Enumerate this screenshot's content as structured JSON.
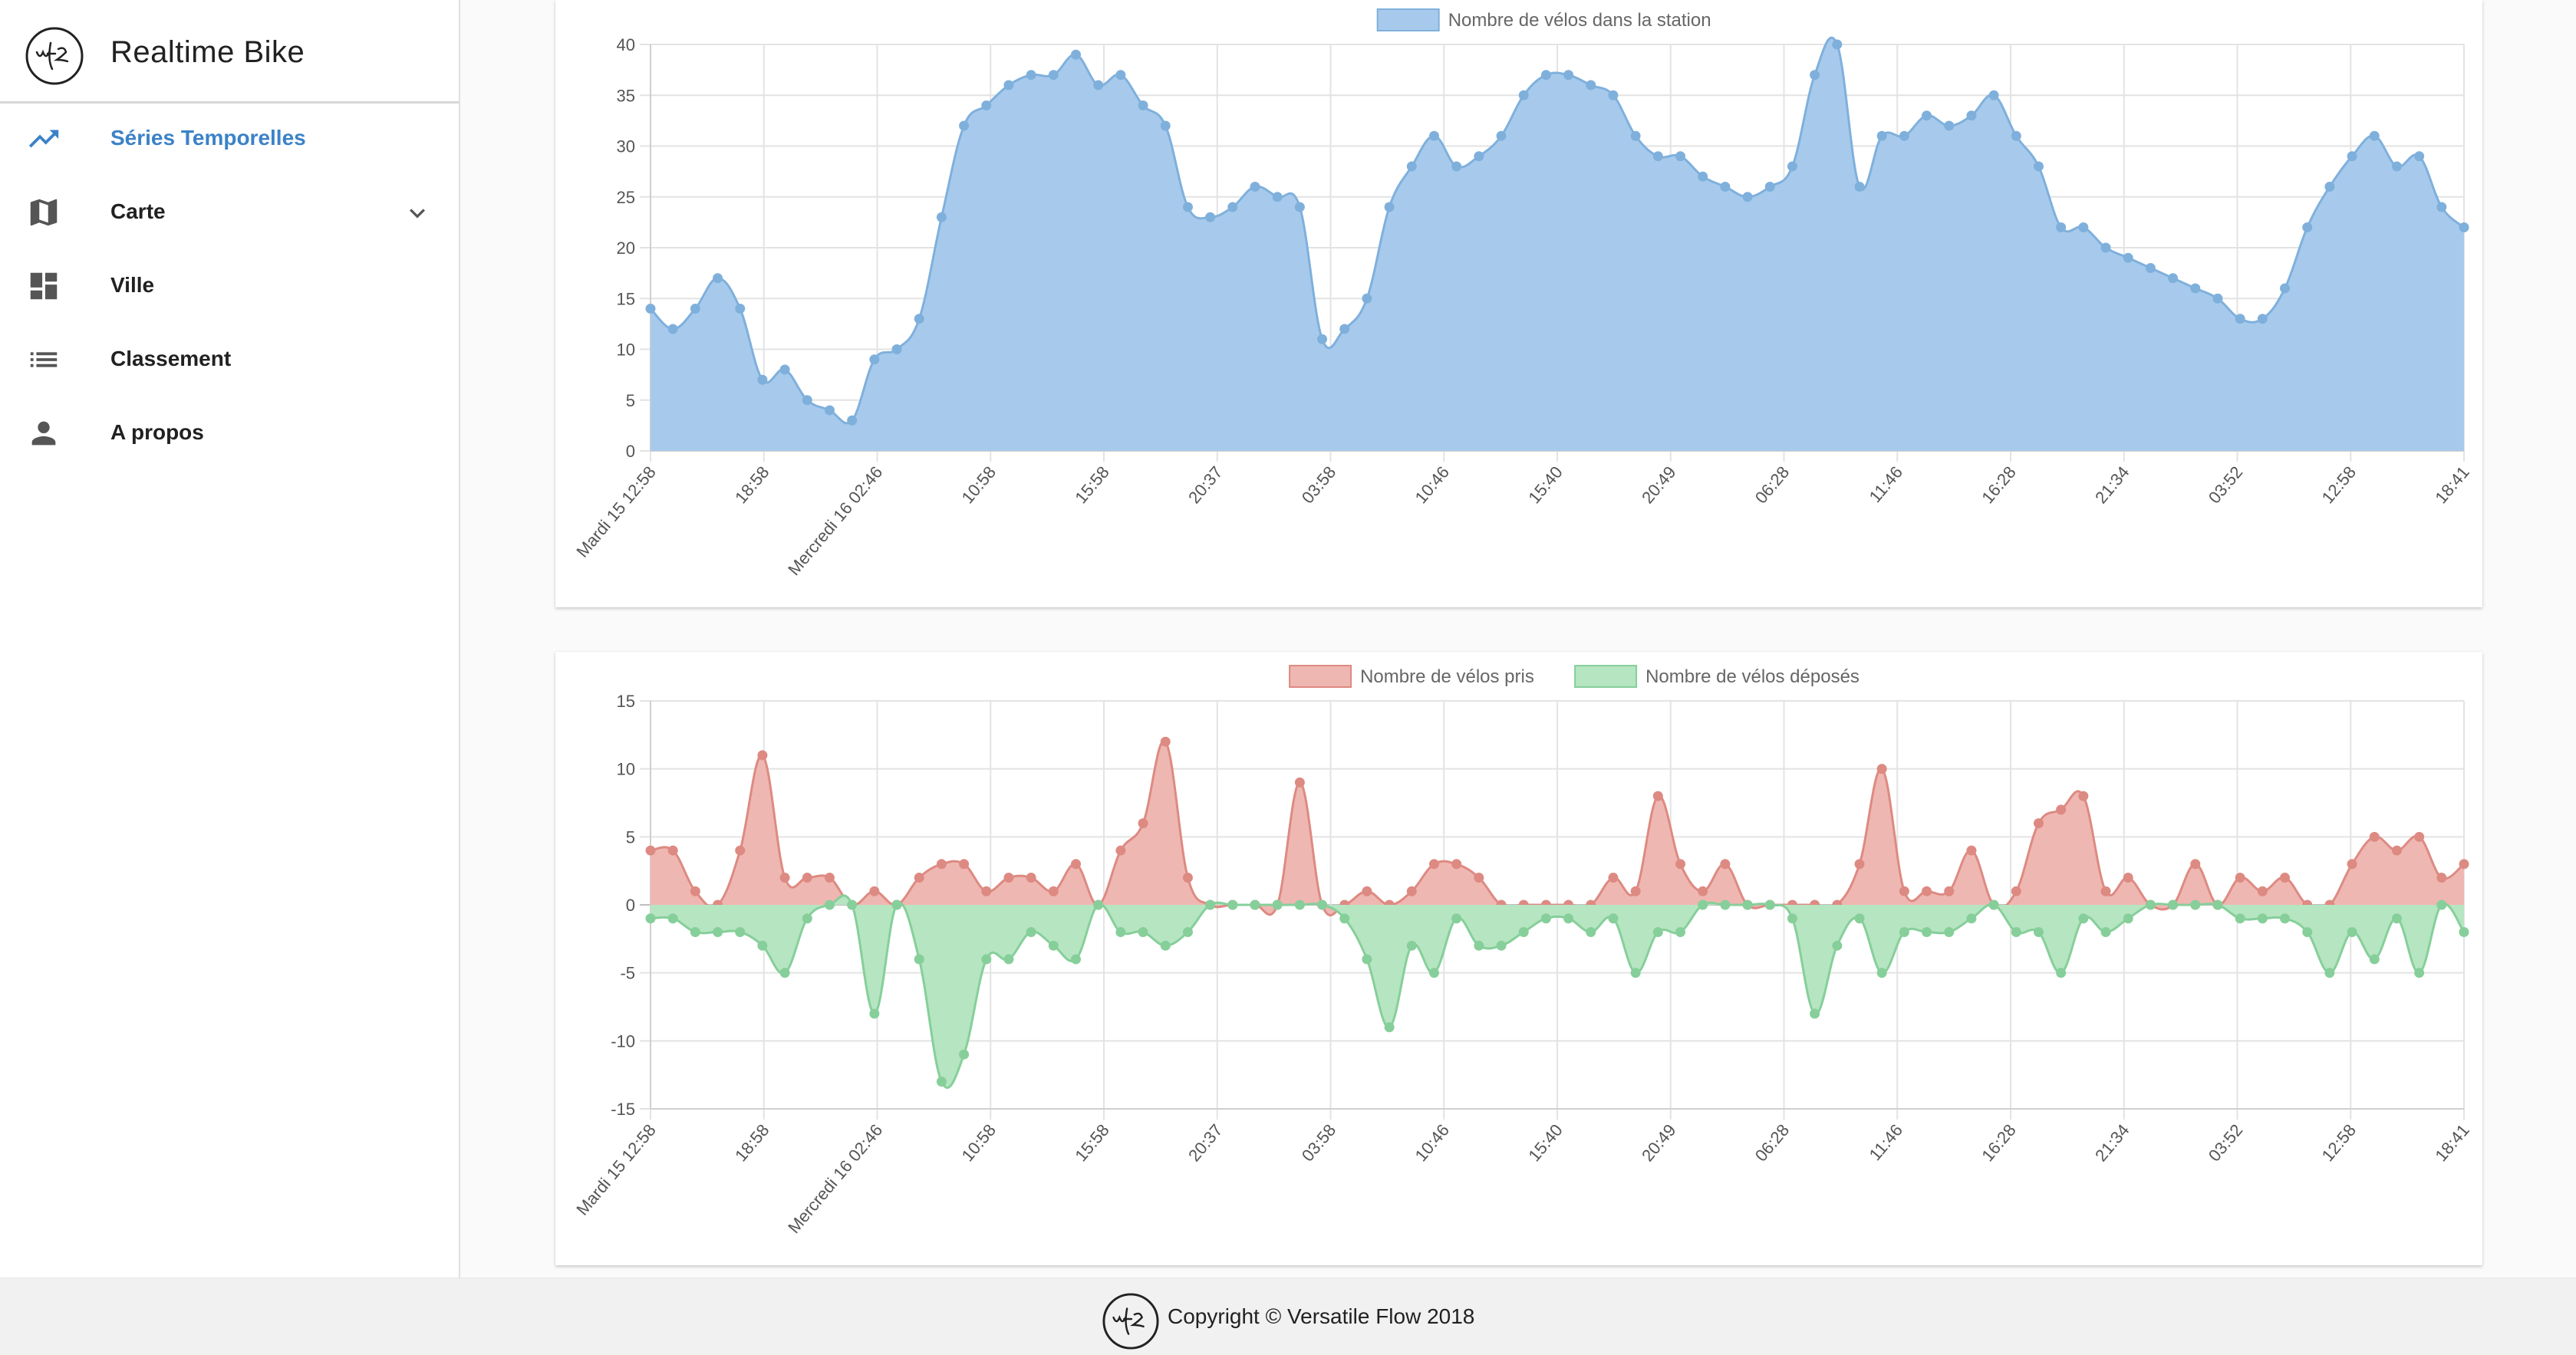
{
  "app": {
    "title": "Realtime Bike",
    "logo_text": "vfz"
  },
  "sidebar": {
    "items": [
      {
        "label": "Séries Temporelles",
        "icon": "trending-up-icon",
        "active": true
      },
      {
        "label": "Carte",
        "icon": "map-icon",
        "expandable": true
      },
      {
        "label": "Ville",
        "icon": "dashboard-icon"
      },
      {
        "label": "Classement",
        "icon": "list-icon"
      },
      {
        "label": "A propos",
        "icon": "person-icon"
      }
    ]
  },
  "footer": {
    "text": "Copyright © Versatile Flow 2018"
  },
  "colors": {
    "accent": "#3b82c8",
    "blue_fill": "#a7caec",
    "blue_line": "#7fb0dc",
    "red_fill": "#efb7b2",
    "red_line": "#dd8a82",
    "green_fill": "#b6e5c1",
    "green_line": "#86cf9a"
  },
  "chart_data": [
    {
      "type": "area",
      "legend": [
        "Nombre de vélos dans la station"
      ],
      "x_tick_labels": [
        "Mardi 15 12:58",
        "18:58",
        "Mercredi 16 02:46",
        "10:58",
        "15:58",
        "20:37",
        "03:58",
        "10:46",
        "15:40",
        "20:49",
        "06:28",
        "11:46",
        "16:28",
        "21:34",
        "03:52",
        "12:58",
        "18:41"
      ],
      "ylim": [
        0,
        40
      ],
      "y_ticks": [
        0,
        5,
        10,
        15,
        20,
        25,
        30,
        35,
        40
      ],
      "series": [
        {
          "name": "Nombre de vélos dans la station",
          "values": [
            14,
            12,
            14,
            17,
            14,
            7,
            8,
            5,
            4,
            3,
            9,
            10,
            13,
            23,
            32,
            34,
            36,
            37,
            37,
            39,
            36,
            37,
            34,
            32,
            24,
            23,
            24,
            26,
            25,
            24,
            11,
            12,
            15,
            24,
            28,
            31,
            28,
            29,
            31,
            35,
            37,
            37,
            36,
            35,
            31,
            29,
            29,
            27,
            26,
            25,
            26,
            28,
            37,
            40,
            26,
            31,
            31,
            33,
            32,
            33,
            35,
            31,
            28,
            22,
            22,
            20,
            19,
            18,
            17,
            16,
            15,
            13,
            13,
            16,
            22,
            26,
            29,
            31,
            28,
            29,
            24,
            22
          ]
        }
      ]
    },
    {
      "type": "area",
      "legend": [
        "Nombre de vélos pris",
        "Nombre de vélos déposés"
      ],
      "x_tick_labels": [
        "Mardi 15 12:58",
        "18:58",
        "Mercredi 16 02:46",
        "10:58",
        "15:58",
        "20:37",
        "03:58",
        "10:46",
        "15:40",
        "20:49",
        "06:28",
        "11:46",
        "16:28",
        "21:34",
        "03:52",
        "12:58",
        "18:41"
      ],
      "ylim": [
        -15,
        15
      ],
      "y_ticks": [
        -15,
        -10,
        -5,
        0,
        5,
        10,
        15
      ],
      "series": [
        {
          "name": "Nombre de vélos pris",
          "values": [
            4,
            4,
            1,
            0,
            4,
            11,
            2,
            2,
            2,
            0,
            1,
            0,
            2,
            3,
            3,
            1,
            2,
            2,
            1,
            3,
            0,
            4,
            6,
            12,
            2,
            0,
            0,
            0,
            0,
            9,
            0,
            0,
            1,
            0,
            1,
            3,
            3,
            2,
            0,
            0,
            0,
            0,
            0,
            2,
            1,
            8,
            3,
            1,
            3,
            0,
            0,
            0,
            0,
            0,
            3,
            10,
            1,
            1,
            1,
            4,
            0,
            1,
            6,
            7,
            8,
            1,
            2,
            0,
            0,
            3,
            0,
            2,
            1,
            2,
            0,
            0,
            3,
            5,
            4,
            5,
            2,
            3
          ]
        },
        {
          "name": "Nombre de vélos déposés",
          "values": [
            -1,
            -1,
            -2,
            -2,
            -2,
            -3,
            -5,
            -1,
            0,
            0,
            -8,
            0,
            -4,
            -13,
            -11,
            -4,
            -4,
            -2,
            -3,
            -4,
            0,
            -2,
            -2,
            -3,
            -2,
            0,
            0,
            0,
            0,
            0,
            0,
            -1,
            -4,
            -9,
            -3,
            -5,
            -1,
            -3,
            -3,
            -2,
            -1,
            -1,
            -2,
            -1,
            -5,
            -2,
            -2,
            0,
            0,
            0,
            0,
            -1,
            -8,
            -3,
            -1,
            -5,
            -2,
            -2,
            -2,
            -1,
            0,
            -2,
            -2,
            -5,
            -1,
            -2,
            -1,
            0,
            0,
            0,
            0,
            -1,
            -1,
            -1,
            -2,
            -5,
            -2,
            -4,
            -1,
            -5,
            0,
            -2
          ]
        }
      ]
    }
  ]
}
